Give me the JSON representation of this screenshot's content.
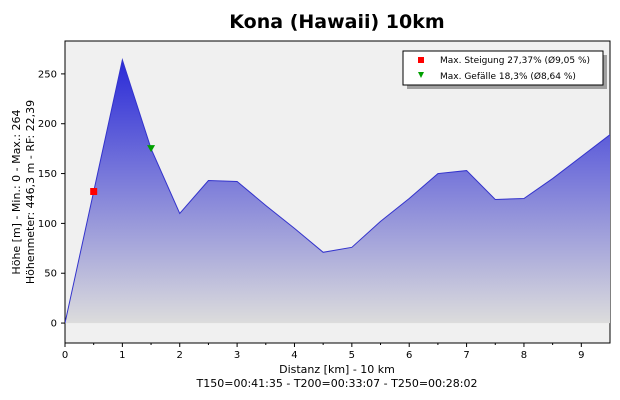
{
  "chart_data": {
    "type": "area",
    "title": "Kona (Hawaii) 10km",
    "xlabel": "Distanz [km] - 10 km",
    "ylabel_line1": "Höhe [m] - Min.: 0 - Max.: 264",
    "ylabel_line2": "Höhenmeter: 446,3 m - RF: 22,39",
    "footer": "T150=00:41:35 - T200=00:33:07 - T250=00:28:02",
    "xlim": [
      0,
      9.5
    ],
    "ylim": [
      -20,
      283
    ],
    "x_ticks": [
      0,
      1,
      2,
      3,
      4,
      5,
      6,
      7,
      8,
      9
    ],
    "y_ticks": [
      0,
      50,
      100,
      150,
      200,
      250
    ],
    "x": [
      0,
      1,
      1.5,
      2,
      2.5,
      3,
      3.5,
      4,
      4.5,
      5,
      5.5,
      6,
      6.5,
      7,
      7.5,
      8,
      8.5,
      9,
      9.5
    ],
    "values": [
      0,
      264,
      175,
      110,
      143,
      142,
      118,
      95,
      71,
      76,
      102,
      125,
      150,
      153,
      124,
      125,
      145,
      167,
      189
    ],
    "markers": [
      {
        "label": "Max. Steigung 27,37% (Ø9,05 %)",
        "x": 0.5,
        "y": 132,
        "symbol": "square",
        "color": "#ff0000"
      },
      {
        "label": "Max. Gefälle 18,3% (Ø8,64 %)",
        "x": 1.5,
        "y": 175,
        "symbol": "triangle-down",
        "color": "#00a000"
      }
    ],
    "legend_position": "top-right",
    "grid": false,
    "colors": {
      "fill_top": "#2a2ad8",
      "fill_bottom": "#dcdcdc",
      "line": "#3333cc",
      "background": "#f0f0f0"
    }
  }
}
